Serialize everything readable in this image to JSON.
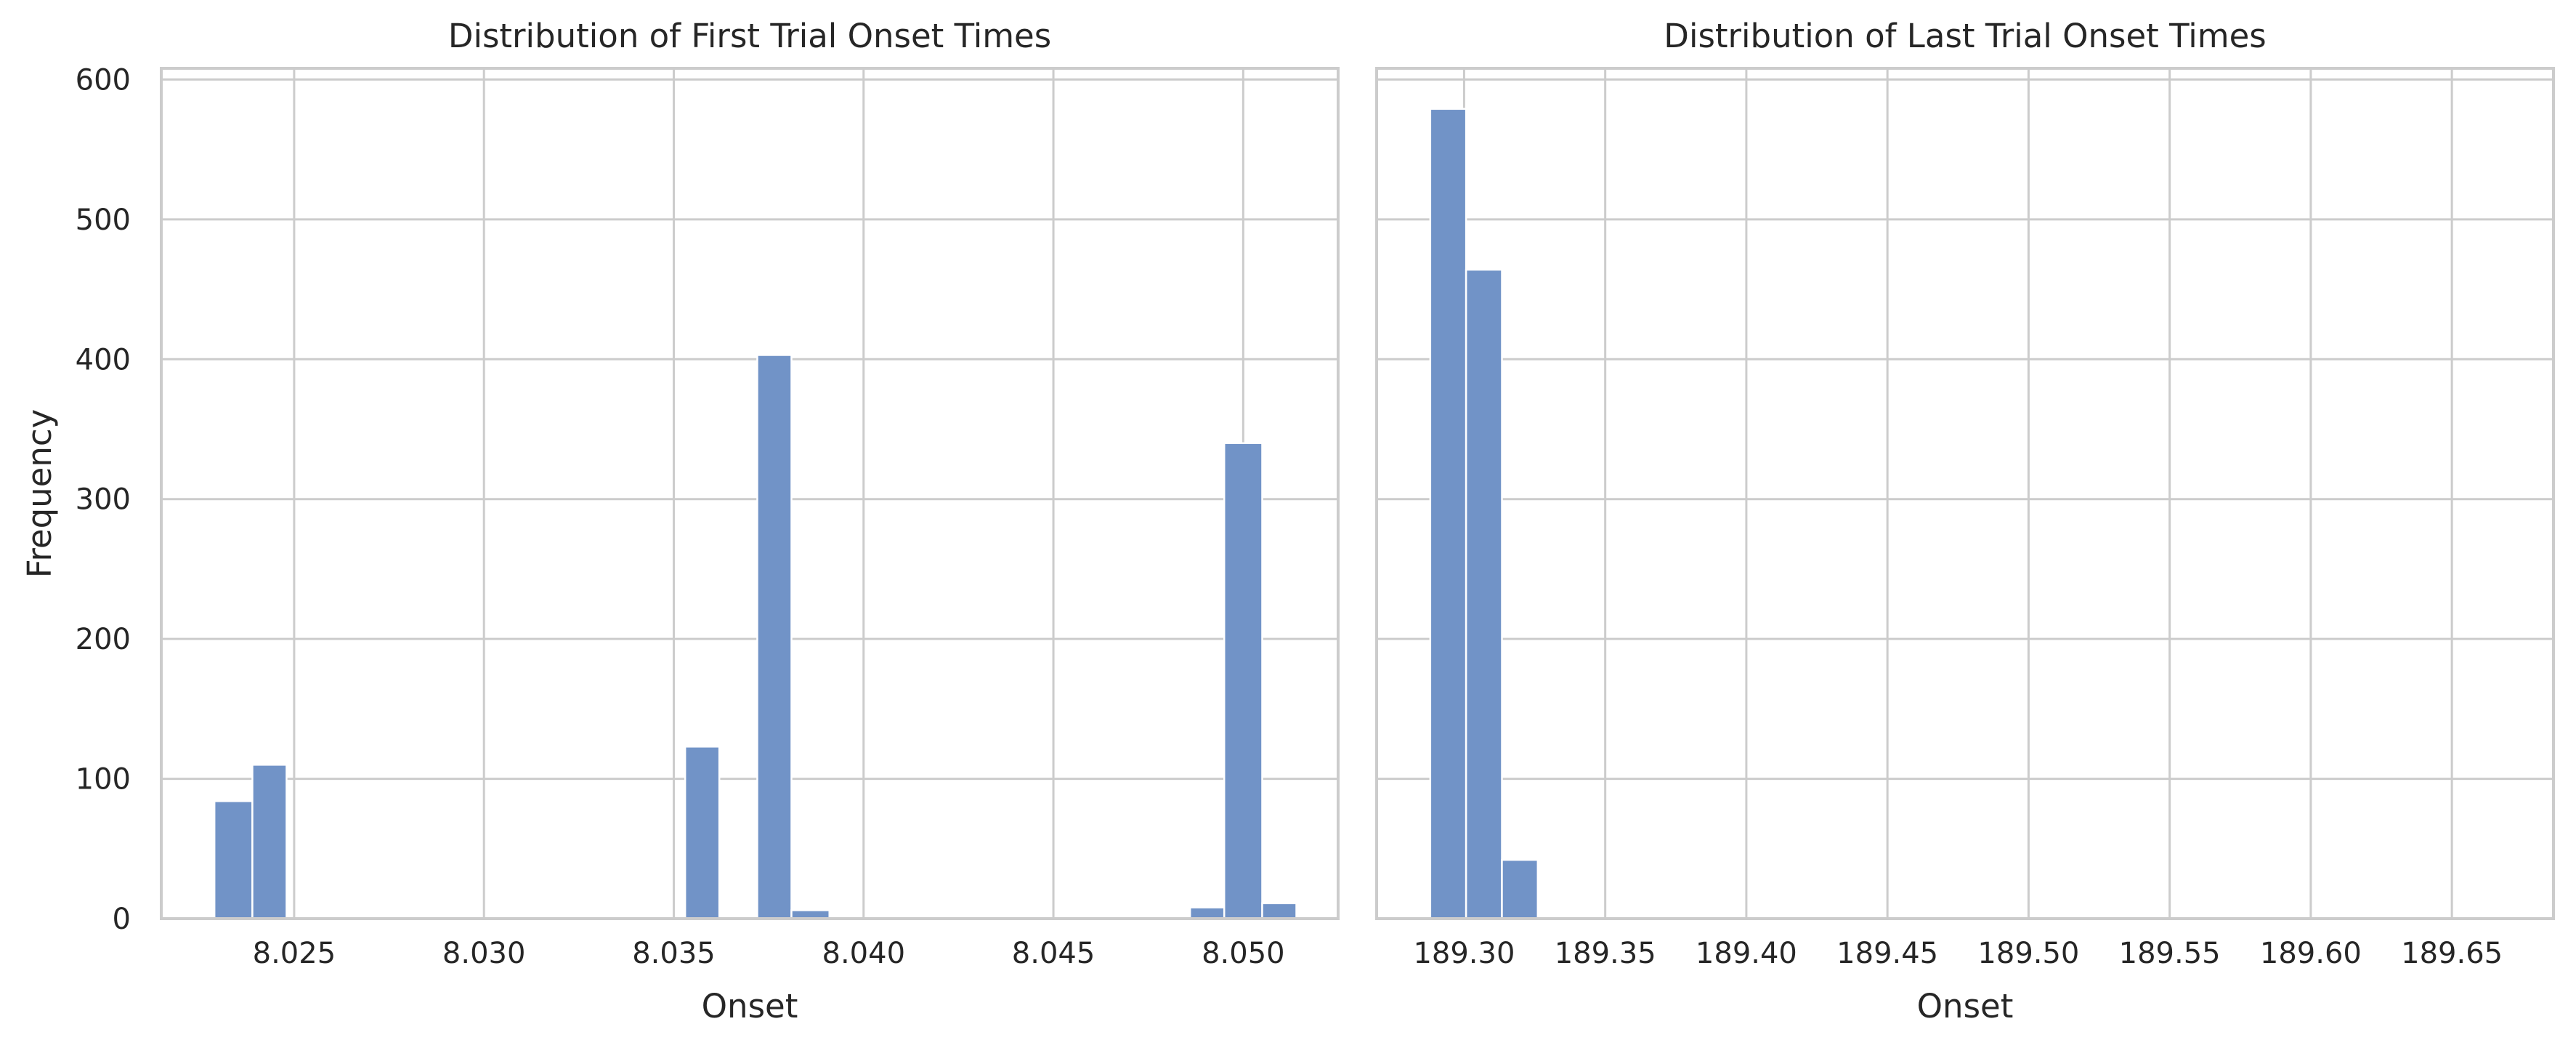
{
  "chart_data": [
    {
      "type": "bar",
      "title": "Distribution of First Trial Onset Times",
      "xlabel": "Onset",
      "ylabel": "Frequency",
      "xlim": [
        8.0215,
        8.0525
      ],
      "ylim": [
        0,
        608
      ],
      "xticks": [
        8.025,
        8.03,
        8.035,
        8.04,
        8.045,
        8.05
      ],
      "xtick_labels": [
        "8.025",
        "8.030",
        "8.035",
        "8.040",
        "8.045",
        "8.050"
      ],
      "yticks": [
        0,
        100,
        200,
        300,
        400,
        500,
        600
      ],
      "ytick_labels": [
        "0",
        "100",
        "200",
        "300",
        "400",
        "500",
        "600"
      ],
      "bin_edges": [
        8.0229,
        8.0239,
        8.0248,
        8.0258,
        8.0267,
        8.0277,
        8.0286,
        8.0296,
        8.0305,
        8.0315,
        8.0324,
        8.0334,
        8.0343,
        8.0353,
        8.0362,
        8.0372,
        8.0381,
        8.0391,
        8.04,
        8.041,
        8.0419,
        8.0429,
        8.0438,
        8.0448,
        8.0457,
        8.0467,
        8.0476,
        8.0486,
        8.0495,
        8.0505,
        8.0514
      ],
      "counts": [
        84,
        110,
        0,
        0,
        0,
        0,
        0,
        0,
        0,
        0,
        0,
        0,
        0,
        123,
        0,
        403,
        6,
        0,
        0,
        0,
        0,
        0,
        0,
        0,
        0,
        0,
        0,
        8,
        340,
        11
      ]
    },
    {
      "type": "bar",
      "title": "Distribution of Last Trial Onset Times",
      "xlabel": "Onset",
      "ylabel": "",
      "xlim": [
        189.269,
        189.686
      ],
      "ylim": [
        0,
        608
      ],
      "xticks": [
        189.3,
        189.35,
        189.4,
        189.45,
        189.5,
        189.55,
        189.6,
        189.65
      ],
      "xtick_labels": [
        "189.30",
        "189.35",
        "189.40",
        "189.45",
        "189.50",
        "189.55",
        "189.60",
        "189.65"
      ],
      "yticks": [
        0,
        100,
        200,
        300,
        400,
        500,
        600
      ],
      "ytick_labels": [],
      "bin_edges": [
        189.288,
        189.3007,
        189.3134,
        189.3261
      ],
      "counts": [
        579,
        464,
        42
      ]
    }
  ]
}
